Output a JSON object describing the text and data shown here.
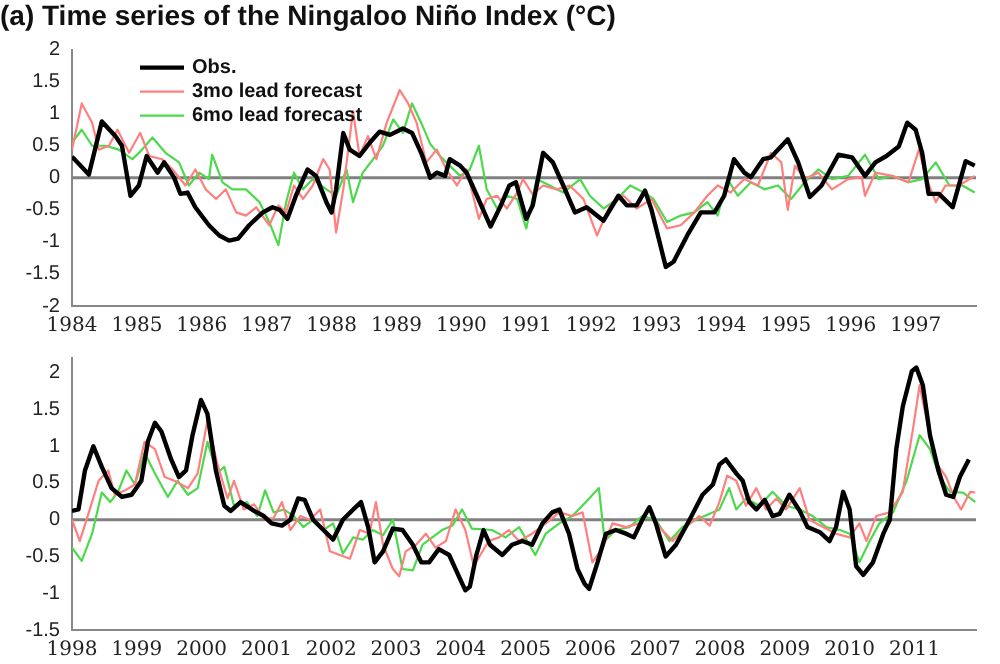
{
  "chart_data": [
    {
      "type": "line",
      "title": "(a) Time series of the Ningaloo Niño Index (°C)",
      "xlim": [
        1984,
        1997.93
      ],
      "xticks": [
        1984,
        1985,
        1986,
        1987,
        1988,
        1989,
        1990,
        1991,
        1992,
        1993,
        1994,
        1995,
        1996,
        1997
      ],
      "ylim": [
        -2,
        2
      ],
      "yticks": [
        -2,
        -1.5,
        -1,
        -0.5,
        0,
        0.5,
        1,
        1.5,
        2
      ],
      "legend": "top left",
      "grid": false,
      "marker": "none",
      "line_style": "solid",
      "ref_lines": [
        {
          "axis": "y",
          "value": 0,
          "color": "#808080"
        }
      ],
      "series": [
        {
          "name": "Obs.",
          "color": "#000000",
          "x": [
            1984.0,
            1984.26,
            1984.46,
            1984.67,
            1984.77,
            1984.9,
            1985.03,
            1985.15,
            1985.32,
            1985.42,
            1985.57,
            1985.67,
            1985.78,
            1985.9,
            1986.11,
            1986.27,
            1986.42,
            1986.56,
            1986.73,
            1986.94,
            1987.09,
            1987.2,
            1987.32,
            1987.45,
            1987.63,
            1987.76,
            1987.92,
            1988.0,
            1988.07,
            1988.18,
            1988.28,
            1988.43,
            1988.59,
            1988.74,
            1988.9,
            1989.1,
            1989.24,
            1989.38,
            1989.52,
            1989.62,
            1989.75,
            1989.82,
            1989.98,
            1990.08,
            1990.24,
            1990.45,
            1990.6,
            1990.74,
            1990.84,
            1991.0,
            1991.1,
            1991.26,
            1991.41,
            1991.57,
            1991.75,
            1991.93,
            1992.19,
            1992.42,
            1992.55,
            1992.7,
            1992.83,
            1992.93,
            1993.15,
            1993.27,
            1993.48,
            1993.69,
            1993.9,
            1994.05,
            1994.2,
            1994.36,
            1994.46,
            1994.65,
            1994.77,
            1995.03,
            1995.19,
            1995.37,
            1995.55,
            1995.81,
            1996.02,
            1996.22,
            1996.38,
            1996.55,
            1996.74,
            1996.87,
            1997.0,
            1997.1,
            1997.2,
            1997.36,
            1997.57,
            1997.77,
            1997.91
          ],
          "values": [
            0.33,
            0.05,
            0.88,
            0.65,
            0.5,
            -0.28,
            -0.12,
            0.34,
            0.08,
            0.24,
            0.01,
            -0.25,
            -0.23,
            -0.46,
            -0.74,
            -0.9,
            -0.98,
            -0.95,
            -0.74,
            -0.54,
            -0.46,
            -0.5,
            -0.64,
            -0.28,
            0.13,
            0.03,
            -0.38,
            -0.54,
            -0.18,
            0.7,
            0.44,
            0.34,
            0.55,
            0.72,
            0.67,
            0.77,
            0.7,
            0.39,
            0,
            0.08,
            0.03,
            0.29,
            0.19,
            0.08,
            -0.28,
            -0.76,
            -0.45,
            -0.12,
            -0.07,
            -0.64,
            -0.43,
            0.39,
            0.24,
            -0.12,
            -0.54,
            -0.46,
            -0.67,
            -0.28,
            -0.43,
            -0.43,
            -0.2,
            -0.5,
            -1.39,
            -1.31,
            -0.9,
            -0.54,
            -0.54,
            -0.28,
            0.29,
            0.08,
            0.01,
            0.29,
            0.32,
            0.6,
            0.24,
            -0.3,
            -0.12,
            0.36,
            0.32,
            0.03,
            0.24,
            0.34,
            0.49,
            0.86,
            0.75,
            0.39,
            -0.25,
            -0.25,
            -0.46,
            0.26,
            0.19
          ]
        },
        {
          "name": "3mo lead forecast",
          "color": "#ff7f7f",
          "x": [
            1984.0,
            1984.15,
            1984.31,
            1984.41,
            1984.57,
            1984.7,
            1984.88,
            1985.05,
            1985.19,
            1985.39,
            1985.55,
            1985.75,
            1985.9,
            1986.06,
            1986.22,
            1986.37,
            1986.53,
            1986.68,
            1986.84,
            1987.04,
            1987.18,
            1987.3,
            1987.42,
            1987.56,
            1987.71,
            1987.87,
            1987.97,
            1988.07,
            1988.18,
            1988.33,
            1988.43,
            1988.56,
            1988.69,
            1988.85,
            1989.05,
            1989.18,
            1989.31,
            1989.46,
            1989.62,
            1989.77,
            1989.93,
            1990.08,
            1990.27,
            1990.39,
            1990.55,
            1990.7,
            1990.86,
            1990.95,
            1991.1,
            1991.26,
            1991.47,
            1991.67,
            1991.88,
            1992.09,
            1992.29,
            1992.5,
            1992.7,
            1992.93,
            1993.17,
            1993.38,
            1993.59,
            1993.79,
            1993.95,
            1994.15,
            1994.36,
            1994.57,
            1994.77,
            1994.93,
            1995.03,
            1995.14,
            1995.29,
            1995.5,
            1995.71,
            1995.96,
            1996.17,
            1996.22,
            1996.38,
            1996.64,
            1996.89,
            1997.05,
            1997.17,
            1997.31,
            1997.46,
            1997.67,
            1997.91
          ],
          "values": [
            0.44,
            1.16,
            0.86,
            0.44,
            0.5,
            0.75,
            0.39,
            0.7,
            0.34,
            0.29,
            0.13,
            -0.12,
            0.13,
            -0.18,
            -0.33,
            -0.18,
            -0.54,
            -0.59,
            -0.46,
            -0.74,
            -0.43,
            -0.54,
            -0.12,
            -0.33,
            -0.12,
            0.29,
            0.13,
            -0.85,
            -0.18,
            1.04,
            0.34,
            0.65,
            0.29,
            0.86,
            1.37,
            1.16,
            0.86,
            0.24,
            0.44,
            0.13,
            -0.12,
            0.13,
            -0.64,
            -0.33,
            -0.28,
            -0.48,
            -0.23,
            -0.02,
            -0.26,
            -0.12,
            -0.18,
            -0.12,
            -0.33,
            -0.9,
            -0.43,
            -0.28,
            -0.48,
            -0.33,
            -0.79,
            -0.74,
            -0.54,
            -0.28,
            -0.12,
            -0.23,
            -0.02,
            -0.12,
            0.39,
            0.24,
            -0.5,
            0.19,
            -0.02,
            0.08,
            -0.18,
            -0.02,
            0.01,
            -0.28,
            0.08,
            0.03,
            -0.07,
            0.44,
            -0.02,
            -0.38,
            -0.12,
            -0.12,
            0.03
          ]
        },
        {
          "name": "6mo lead forecast",
          "color": "#4cd94c",
          "x": [
            1984.0,
            1984.15,
            1984.31,
            1984.52,
            1984.72,
            1984.93,
            1985.08,
            1985.24,
            1985.44,
            1985.65,
            1985.8,
            1985.96,
            1986.11,
            1986.16,
            1986.32,
            1986.47,
            1986.68,
            1986.89,
            1987.04,
            1987.18,
            1987.3,
            1987.42,
            1987.56,
            1987.71,
            1987.92,
            1988.07,
            1988.23,
            1988.33,
            1988.48,
            1988.64,
            1988.79,
            1988.95,
            1989.1,
            1989.24,
            1989.38,
            1989.52,
            1989.67,
            1989.82,
            1989.98,
            1990.13,
            1990.27,
            1990.39,
            1990.55,
            1990.7,
            1990.86,
            1991.0,
            1991.16,
            1991.36,
            1991.57,
            1991.83,
            1991.98,
            1992.19,
            1992.4,
            1992.6,
            1992.81,
            1992.96,
            1993.17,
            1993.38,
            1993.59,
            1993.79,
            1993.95,
            1994.1,
            1994.26,
            1994.46,
            1994.67,
            1994.88,
            1995.08,
            1995.29,
            1995.5,
            1995.71,
            1995.96,
            1996.22,
            1996.43,
            1996.64,
            1996.89,
            1997.1,
            1997.31,
            1997.52,
            1997.72,
            1997.91
          ],
          "values": [
            0.55,
            0.75,
            0.5,
            0.5,
            0.44,
            0.29,
            0.44,
            0.63,
            0.39,
            0.24,
            -0.12,
            0.08,
            -0.02,
            0.36,
            -0.07,
            -0.18,
            -0.18,
            -0.38,
            -0.69,
            -1.05,
            -0.38,
            0.08,
            -0.18,
            -0.02,
            -0.18,
            -0.28,
            0.13,
            -0.38,
            0.08,
            0.29,
            0.5,
            0.91,
            0.7,
            1.16,
            0.86,
            0.53,
            0.34,
            0.19,
            0.03,
            0.13,
            0.5,
            -0.18,
            -0.48,
            -0.28,
            -0.33,
            -0.79,
            -0.02,
            -0.12,
            -0.23,
            -0.02,
            -0.28,
            -0.48,
            -0.33,
            -0.12,
            -0.23,
            -0.33,
            -0.69,
            -0.59,
            -0.54,
            -0.38,
            -0.59,
            -0.02,
            -0.28,
            -0.07,
            -0.18,
            -0.12,
            -0.33,
            -0.07,
            0.13,
            -0.02,
            0.03,
            0.36,
            -0.02,
            0.03,
            -0.07,
            -0.02,
            0.24,
            -0.12,
            -0.12,
            -0.23
          ]
        }
      ]
    },
    {
      "type": "line",
      "xlim": [
        1998,
        2011.95
      ],
      "xticks": [
        1998,
        1999,
        2000,
        2001,
        2002,
        2003,
        2004,
        2005,
        2006,
        2007,
        2008,
        2009,
        2010,
        2011
      ],
      "ylim": [
        -1.5,
        2.2
      ],
      "yticks": [
        -1.5,
        -1,
        -0.5,
        0,
        0.5,
        1,
        1.5,
        2
      ],
      "legend": false,
      "grid": false,
      "marker": "none",
      "line_style": "solid",
      "ref_lines": [
        {
          "axis": "y",
          "value": 0,
          "color": "#808080"
        }
      ],
      "series": [
        {
          "color": "#000000",
          "x": [
            1998.0,
            1998.1,
            1998.2,
            1998.33,
            1998.46,
            1998.61,
            1998.77,
            1998.92,
            1999.07,
            1999.17,
            1999.28,
            1999.38,
            1999.53,
            1999.65,
            1999.76,
            1999.86,
            1999.99,
            2000.09,
            2000.22,
            2000.35,
            2000.45,
            2000.6,
            2000.81,
            2000.96,
            2001.08,
            2001.24,
            2001.37,
            2001.49,
            2001.59,
            2001.72,
            2001.88,
            2002.03,
            2002.18,
            2002.34,
            2002.46,
            2002.57,
            2002.67,
            2002.8,
            2002.95,
            2003.1,
            2003.26,
            2003.39,
            2003.51,
            2003.66,
            2003.82,
            2003.97,
            2004.07,
            2004.14,
            2004.24,
            2004.35,
            2004.45,
            2004.64,
            2004.79,
            2004.95,
            2005.1,
            2005.26,
            2005.41,
            2005.52,
            2005.67,
            2005.8,
            2005.91,
            2005.98,
            2006.11,
            2006.24,
            2006.39,
            2006.55,
            2006.67,
            2006.8,
            2006.91,
            2007.01,
            2007.16,
            2007.32,
            2007.53,
            2007.73,
            2007.89,
            2007.99,
            2008.09,
            2008.25,
            2008.35,
            2008.45,
            2008.56,
            2008.69,
            2008.81,
            2008.92,
            2009.07,
            2009.23,
            2009.35,
            2009.54,
            2009.69,
            2009.79,
            2009.9,
            2010.0,
            2010.1,
            2010.21,
            2010.36,
            2010.52,
            2010.62,
            2010.72,
            2010.82,
            2010.96,
            2011.03,
            2011.13,
            2011.24,
            2011.37,
            2011.49,
            2011.6,
            2011.7,
            2011.84
          ],
          "values": [
            0.12,
            0.14,
            0.67,
            1.0,
            0.72,
            0.43,
            0.31,
            0.34,
            0.53,
            1.06,
            1.32,
            1.2,
            0.82,
            0.58,
            0.67,
            1.15,
            1.63,
            1.44,
            0.67,
            0.19,
            0.12,
            0.24,
            0.12,
            0.05,
            -0.05,
            -0.08,
            0,
            0.29,
            0.27,
            0,
            -0.14,
            -0.27,
            0,
            0.14,
            0.24,
            -0.1,
            -0.58,
            -0.43,
            -0.12,
            -0.14,
            -0.34,
            -0.58,
            -0.58,
            -0.4,
            -0.48,
            -0.77,
            -0.96,
            -0.91,
            -0.48,
            -0.14,
            -0.34,
            -0.48,
            -0.34,
            -0.29,
            -0.34,
            -0.05,
            0.1,
            0.14,
            -0.19,
            -0.67,
            -0.87,
            -0.94,
            -0.58,
            -0.19,
            -0.14,
            -0.19,
            -0.24,
            0,
            0.17,
            -0.05,
            -0.5,
            -0.34,
            0,
            0.34,
            0.48,
            0.75,
            0.82,
            0.63,
            0.53,
            0.24,
            0.14,
            0.27,
            0.05,
            0.08,
            0.34,
            0.12,
            -0.1,
            -0.17,
            -0.29,
            -0.1,
            0.38,
            0.14,
            -0.63,
            -0.75,
            -0.58,
            -0.19,
            0,
            0.96,
            1.54,
            2.02,
            2.07,
            1.83,
            1.15,
            0.67,
            0.34,
            0.31,
            0.58,
            0.82
          ]
        },
        {
          "color": "#ff7f7f",
          "x": [
            1998.0,
            1998.12,
            1998.26,
            1998.41,
            1998.56,
            1998.66,
            1998.82,
            1998.97,
            1999.12,
            1999.28,
            1999.43,
            1999.58,
            1999.79,
            1999.94,
            2000.09,
            2000.24,
            2000.4,
            2000.5,
            2000.65,
            2000.81,
            2000.96,
            2001.11,
            2001.24,
            2001.37,
            2001.52,
            2001.67,
            2001.83,
            2001.98,
            2002.13,
            2002.29,
            2002.44,
            2002.59,
            2002.69,
            2002.8,
            2002.95,
            2003.05,
            2003.15,
            2003.31,
            2003.46,
            2003.61,
            2003.77,
            2003.92,
            2004.07,
            2004.2,
            2004.43,
            2004.59,
            2004.74,
            2004.9,
            2005.1,
            2005.31,
            2005.52,
            2005.72,
            2005.88,
            2006.03,
            2006.19,
            2006.34,
            2006.55,
            2006.75,
            2006.91,
            2007.06,
            2007.27,
            2007.47,
            2007.68,
            2007.84,
            2007.99,
            2008.11,
            2008.25,
            2008.4,
            2008.56,
            2008.71,
            2008.87,
            2009.02,
            2009.23,
            2009.38,
            2009.59,
            2009.79,
            2010.0,
            2010.15,
            2010.26,
            2010.41,
            2010.62,
            2010.82,
            2010.98,
            2011.08,
            2011.19,
            2011.34,
            2011.49,
            2011.62,
            2011.72,
            2011.86,
            2011.94
          ],
          "values": [
            0,
            -0.29,
            0.1,
            0.53,
            0.67,
            0.34,
            0.4,
            0.48,
            1.06,
            0.96,
            0.58,
            0.53,
            0.43,
            0.63,
            1.35,
            0.77,
            0.29,
            0.53,
            0.14,
            0.21,
            0.02,
            0.02,
            0.24,
            -0.14,
            0.05,
            0,
            0.14,
            -0.43,
            -0.48,
            -0.53,
            -0.14,
            -0.19,
            0.24,
            -0.34,
            -0.67,
            -0.77,
            -0.43,
            -0.34,
            -0.19,
            -0.38,
            -0.29,
            0.14,
            -0.14,
            -0.63,
            -0.29,
            -0.24,
            -0.14,
            -0.29,
            -0.19,
            -0.05,
            0.1,
            0.05,
            0.1,
            -0.58,
            -0.38,
            -0.05,
            -0.1,
            -0.05,
            0.14,
            -0.1,
            -0.29,
            -0.1,
            0.05,
            -0.08,
            0.24,
            0.6,
            0.53,
            0.19,
            0.43,
            0.14,
            0.29,
            0.14,
            0.43,
            0,
            -0.1,
            -0.19,
            -0.24,
            -0.05,
            -0.29,
            0.05,
            0.1,
            0.38,
            1.25,
            1.83,
            1.35,
            0.77,
            0.58,
            0.29,
            0.14,
            0.38,
            0.37
          ]
        },
        {
          "color": "#4cd94c",
          "x": [
            1998.0,
            1998.15,
            1998.31,
            1998.46,
            1998.59,
            1998.71,
            1998.84,
            1998.97,
            1999.12,
            1999.28,
            1999.48,
            1999.63,
            1999.79,
            1999.94,
            2000.09,
            2000.24,
            2000.35,
            2000.5,
            2000.7,
            2000.86,
            2000.98,
            2001.11,
            2001.27,
            2001.42,
            2001.57,
            2001.72,
            2001.88,
            2002.03,
            2002.18,
            2002.34,
            2002.49,
            2002.64,
            2002.8,
            2002.95,
            2003.1,
            2003.26,
            2003.41,
            2003.56,
            2003.71,
            2003.87,
            2004.02,
            2004.17,
            2004.48,
            2004.69,
            2004.9,
            2005.15,
            2005.31,
            2005.52,
            2005.72,
            2005.93,
            2006.13,
            2006.22,
            2006.39,
            2006.6,
            2006.8,
            2007.01,
            2007.22,
            2007.42,
            2007.63,
            2007.84,
            2007.99,
            2008.14,
            2008.25,
            2008.4,
            2008.61,
            2008.81,
            2009.02,
            2009.23,
            2009.43,
            2009.64,
            2009.85,
            2010.0,
            2010.15,
            2010.31,
            2010.46,
            2010.67,
            2010.88,
            2011.08,
            2011.24,
            2011.39,
            2011.55,
            2011.75,
            2011.94
          ],
          "values": [
            -0.38,
            -0.56,
            -0.19,
            0.37,
            0.24,
            0.38,
            0.67,
            0.48,
            0.91,
            0.63,
            0.31,
            0.53,
            0.34,
            0.43,
            1.06,
            0.63,
            0.72,
            0.19,
            0.24,
            0.05,
            0.4,
            0.1,
            0.14,
            0.05,
            -0.1,
            0,
            -0.14,
            -0.05,
            -0.46,
            -0.24,
            -0.27,
            -0.14,
            -0.21,
            0,
            -0.67,
            -0.69,
            -0.34,
            -0.24,
            -0.14,
            -0.08,
            0.14,
            -0.12,
            -0.14,
            -0.24,
            -0.1,
            -0.48,
            -0.19,
            -0.05,
            0.05,
            0.24,
            0.43,
            -0.29,
            -0.14,
            -0.1,
            0.05,
            0,
            -0.29,
            -0.1,
            0,
            0.08,
            0.14,
            0.43,
            0.14,
            0.29,
            0.19,
            0.38,
            0.19,
            0.14,
            0.05,
            -0.1,
            -0.14,
            -0.19,
            -0.58,
            -0.29,
            -0.05,
            0.1,
            0.53,
            1.15,
            0.96,
            0.58,
            0.38,
            0.37,
            0.24
          ]
        }
      ]
    }
  ]
}
